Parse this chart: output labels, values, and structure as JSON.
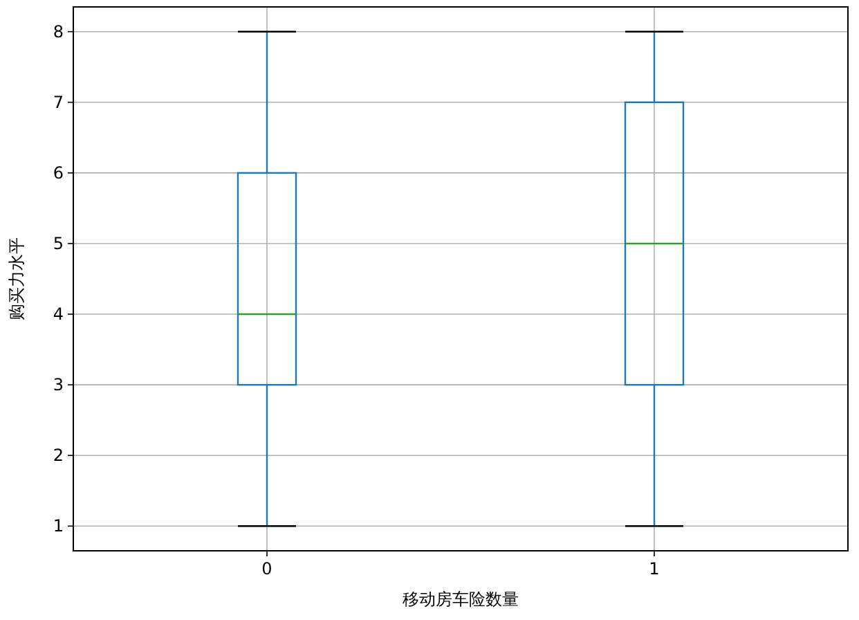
{
  "chart_data": {
    "type": "box",
    "xlabel": "移动房车险数量",
    "ylabel": "购买力水平",
    "categories": [
      "0",
      "1"
    ],
    "boxes": [
      {
        "low": 1,
        "q1": 3,
        "median": 4,
        "q3": 6,
        "high": 8
      },
      {
        "low": 1,
        "q1": 3,
        "median": 5,
        "q3": 7,
        "high": 8
      }
    ],
    "color": "#1f77b4",
    "ylim": [
      0.65,
      8.35
    ],
    "yticks": [
      1,
      2,
      3,
      4,
      5,
      6,
      7,
      8
    ],
    "grid": true
  }
}
